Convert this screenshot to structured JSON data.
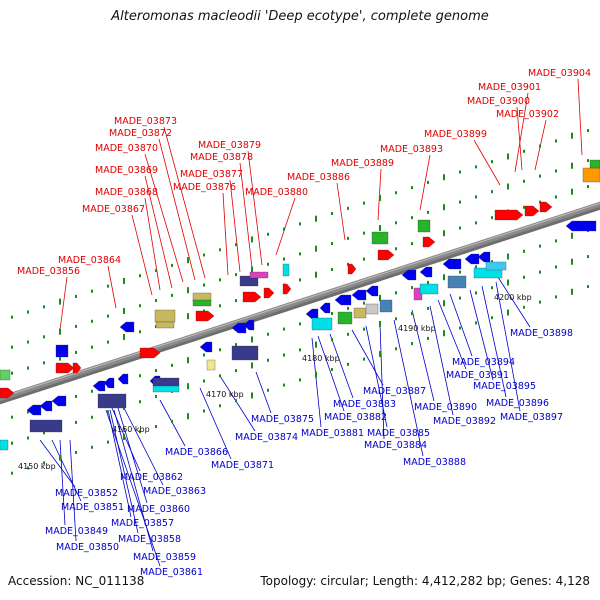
{
  "title": "Alteromonas macleodii 'Deep ecotype', complete genome",
  "footer": {
    "accession": "Accession: NC_011138",
    "summary": "Topology: circular; Length: 4,412,282 bp; Genes: 4,128"
  },
  "colors": {
    "forward_label": "#e00000",
    "reverse_label": "#0000cc",
    "forward_gene": "#ff0000",
    "reverse_gene": "#0000ee",
    "backbone": "#8a8a8a",
    "tick": "#1e8a1e",
    "cog_cyan": "#00e0e8",
    "cog_olive": "#c8b860",
    "cog_darkblue": "#3a3a8a",
    "cog_green": "#28b428",
    "cog_orange": "#ff9900",
    "cog_magenta": "#e040c0",
    "cog_steel": "#4682b4",
    "cog_lightgreen": "#60d060"
  },
  "scale": [
    "4150 kbp",
    "4160 kbp",
    "4170 kbp",
    "4180 kbp",
    "4190 kbp",
    "4200 kbp"
  ],
  "forward_labels": [
    "MADE_03856",
    "MADE_03864",
    "MADE_03867",
    "MADE_03868",
    "MADE_03869",
    "MADE_03870",
    "MADE_03872",
    "MADE_03873",
    "MADE_03876",
    "MADE_03877",
    "MADE_03878",
    "MADE_03879",
    "MADE_03880",
    "MADE_03886",
    "MADE_03889",
    "MADE_03893",
    "MADE_03899",
    "MADE_03902",
    "MADE_03900",
    "MADE_03901",
    "MADE_03904"
  ],
  "reverse_labels": [
    "MADE_03852",
    "MADE_03851",
    "MADE_03849",
    "MADE_03850",
    "MADE_03862",
    "MADE_03863",
    "MADE_03860",
    "MADE_03857",
    "MADE_03858",
    "MADE_03859",
    "MADE_03861",
    "MADE_03866",
    "MADE_03871",
    "MADE_03874",
    "MADE_03875",
    "MADE_03882",
    "MADE_03881",
    "MADE_03883",
    "MADE_03887",
    "MADE_03885",
    "MADE_03884",
    "MADE_03888",
    "MADE_03890",
    "MADE_03892",
    "MADE_03891",
    "MADE_03894",
    "MADE_03895",
    "MADE_03896",
    "MADE_03897",
    "MADE_03898"
  ]
}
